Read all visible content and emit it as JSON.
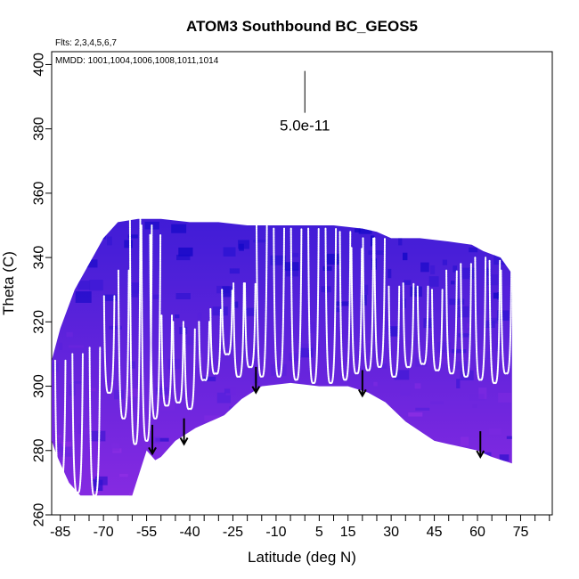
{
  "chart_data": {
    "type": "heatmap",
    "title": "ATOM3 Southbound BC_GEOS5",
    "flights_note": "Flts: 2,3,4,5,6,7",
    "dates_note": "MMDD: 1001,1004,1006,1008,1011,1014",
    "xlabel": "Latitude (deg N)",
    "ylabel": "Theta (C)",
    "xlim": [
      -88,
      86
    ],
    "ylim": [
      260,
      404
    ],
    "x_ticks": [
      "-85",
      "-70",
      "-55",
      "-40",
      "-25",
      "-10",
      "5",
      "15",
      "30",
      "45",
      "60",
      "75"
    ],
    "x_tick_values": [
      -85,
      -70,
      -55,
      -40,
      -25,
      -10,
      5,
      15,
      30,
      45,
      60,
      75
    ],
    "x_minor_ticks": [
      -80,
      -75,
      -65,
      -60,
      -50,
      -45,
      -35,
      -30,
      -20,
      -15,
      -5,
      0,
      10,
      20,
      25,
      35,
      40,
      50,
      55,
      65,
      70,
      80,
      85
    ],
    "y_ticks": [
      "260",
      "280",
      "300",
      "320",
      "340",
      "360",
      "380",
      "400"
    ],
    "y_tick_values": [
      260,
      280,
      300,
      320,
      340,
      360,
      380,
      400
    ],
    "scale_bar": {
      "label": "5.0e-11",
      "x": 0,
      "y_top": 398,
      "y_bottom": 385
    },
    "colors": {
      "low": "#1c10d6",
      "high": "#8a2be2",
      "profile": "#ffffff",
      "arrow": "#000000"
    },
    "domain_top": [
      [
        -88,
        308
      ],
      [
        -85,
        318
      ],
      [
        -80,
        330
      ],
      [
        -75,
        338
      ],
      [
        -70,
        346
      ],
      [
        -65,
        351
      ],
      [
        -58,
        352
      ],
      [
        -50,
        352
      ],
      [
        -40,
        351
      ],
      [
        -30,
        351
      ],
      [
        -20,
        350
      ],
      [
        -10,
        350
      ],
      [
        0,
        350
      ],
      [
        10,
        350
      ],
      [
        20,
        349
      ],
      [
        25,
        348
      ],
      [
        30,
        346
      ],
      [
        40,
        346
      ],
      [
        50,
        345
      ],
      [
        58,
        344
      ],
      [
        62,
        342
      ],
      [
        68,
        340
      ],
      [
        72,
        335
      ]
    ],
    "domain_bottom": [
      [
        72,
        276
      ],
      [
        65,
        278
      ],
      [
        60,
        280
      ],
      [
        50,
        282
      ],
      [
        45,
        283
      ],
      [
        35,
        289
      ],
      [
        28,
        295
      ],
      [
        22,
        298
      ],
      [
        15,
        300
      ],
      [
        5,
        300
      ],
      [
        -5,
        301
      ],
      [
        -15,
        300
      ],
      [
        -22,
        296
      ],
      [
        -28,
        291
      ],
      [
        -38,
        287
      ],
      [
        -45,
        283
      ],
      [
        -50,
        278
      ],
      [
        -52,
        277
      ],
      [
        -55,
        280
      ],
      [
        -60,
        266
      ],
      [
        -70,
        266
      ],
      [
        -78,
        266
      ],
      [
        -82,
        270
      ],
      [
        -86,
        278
      ],
      [
        -88,
        283
      ]
    ],
    "profiles": [
      {
        "lat": -85,
        "top": 308,
        "bottom": 270
      },
      {
        "lat": -79,
        "top": 310,
        "bottom": 267
      },
      {
        "lat": -73,
        "top": 312,
        "bottom": 266
      },
      {
        "lat": -68,
        "top": 328,
        "bottom": 298
      },
      {
        "lat": -63,
        "top": 336,
        "bottom": 290
      },
      {
        "lat": -59,
        "top": 352,
        "bottom": 282
      },
      {
        "lat": -55,
        "top": 350,
        "bottom": 283
      },
      {
        "lat": -52,
        "top": 347,
        "bottom": 290
      },
      {
        "lat": -48,
        "top": 322,
        "bottom": 294
      },
      {
        "lat": -44,
        "top": 320,
        "bottom": 295
      },
      {
        "lat": -40,
        "top": 318,
        "bottom": 293
      },
      {
        "lat": -35,
        "top": 320,
        "bottom": 302
      },
      {
        "lat": -31,
        "top": 324,
        "bottom": 304
      },
      {
        "lat": -27,
        "top": 330,
        "bottom": 310
      },
      {
        "lat": -23,
        "top": 332,
        "bottom": 303
      },
      {
        "lat": -19,
        "top": 332,
        "bottom": 306
      },
      {
        "lat": -15,
        "top": 350,
        "bottom": 303
      },
      {
        "lat": -9,
        "top": 349,
        "bottom": 303
      },
      {
        "lat": -3,
        "top": 349,
        "bottom": 302
      },
      {
        "lat": 3,
        "top": 349,
        "bottom": 301
      },
      {
        "lat": 9,
        "top": 349,
        "bottom": 301
      },
      {
        "lat": 14,
        "top": 348,
        "bottom": 302
      },
      {
        "lat": 18,
        "top": 343,
        "bottom": 304
      },
      {
        "lat": 22,
        "top": 346,
        "bottom": 305
      },
      {
        "lat": 26,
        "top": 346,
        "bottom": 306
      },
      {
        "lat": 31,
        "top": 331,
        "bottom": 303
      },
      {
        "lat": 36,
        "top": 332,
        "bottom": 306
      },
      {
        "lat": 41,
        "top": 331,
        "bottom": 307
      },
      {
        "lat": 46,
        "top": 330,
        "bottom": 305
      },
      {
        "lat": 51,
        "top": 336,
        "bottom": 304
      },
      {
        "lat": 56,
        "top": 338,
        "bottom": 303
      },
      {
        "lat": 61,
        "top": 340,
        "bottom": 302
      },
      {
        "lat": 66,
        "top": 339,
        "bottom": 301
      },
      {
        "lat": 70,
        "top": 336,
        "bottom": 304
      }
    ],
    "arrows": [
      {
        "lat": -53,
        "from": 288,
        "to": 279
      },
      {
        "lat": -42,
        "from": 290,
        "to": 282
      },
      {
        "lat": -17,
        "from": 306,
        "to": 298
      },
      {
        "lat": 20,
        "from": 305,
        "to": 297
      },
      {
        "lat": 61,
        "from": 286,
        "to": 278
      }
    ]
  }
}
